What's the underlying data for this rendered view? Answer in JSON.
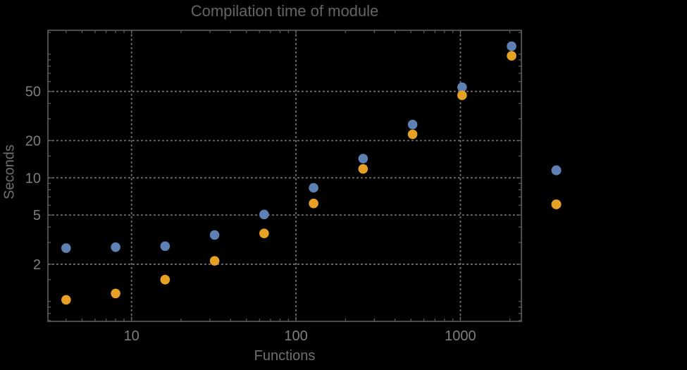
{
  "window": {
    "background": "#000000"
  },
  "chart_data": {
    "type": "scatter",
    "title": "Compilation time of module",
    "xlabel": "Functions",
    "ylabel": "Seconds",
    "x_scale": "log",
    "y_scale": "log",
    "grid": "dotted",
    "grid_color": "#737373",
    "frame_color": "#5f5f5f",
    "label_color": "#7e7e7e",
    "xlim": [
      3.1,
      2350
    ],
    "ylim": [
      0.69,
      156
    ],
    "x_ticks": [
      10,
      100,
      1000
    ],
    "y_ticks": [
      2,
      5,
      10,
      20,
      50
    ],
    "x_minor_ticks": [
      4,
      5,
      6,
      7,
      8,
      9,
      20,
      30,
      40,
      50,
      60,
      70,
      80,
      90,
      200,
      300,
      400,
      500,
      600,
      700,
      800,
      900,
      2000
    ],
    "y_minor_ticks": [
      0.7,
      0.8,
      0.9,
      1,
      1.5,
      3,
      4,
      6,
      7,
      8,
      9,
      15,
      30,
      40,
      60,
      70,
      80,
      90,
      100,
      150
    ],
    "x": [
      4,
      8,
      16,
      32,
      64,
      128,
      256,
      512,
      1024,
      2048
    ],
    "series": [
      {
        "name": "series-blue",
        "color": "#5e81b5",
        "values": [
          2.7,
          2.75,
          2.8,
          3.45,
          5.05,
          8.3,
          14.3,
          27.0,
          54.0,
          116.0
        ]
      },
      {
        "name": "series-orange",
        "color": "#e6a125",
        "values": [
          1.03,
          1.16,
          1.5,
          2.13,
          3.55,
          6.2,
          11.8,
          22.5,
          46.5,
          97.0
        ]
      }
    ],
    "legend": {
      "position": "right-outside",
      "markers": [
        {
          "name": "legend-marker-blue",
          "color": "#5e81b5",
          "value_at": 11.5
        },
        {
          "name": "legend-marker-orange",
          "color": "#e6a125",
          "value_at": 6.1
        }
      ]
    }
  }
}
